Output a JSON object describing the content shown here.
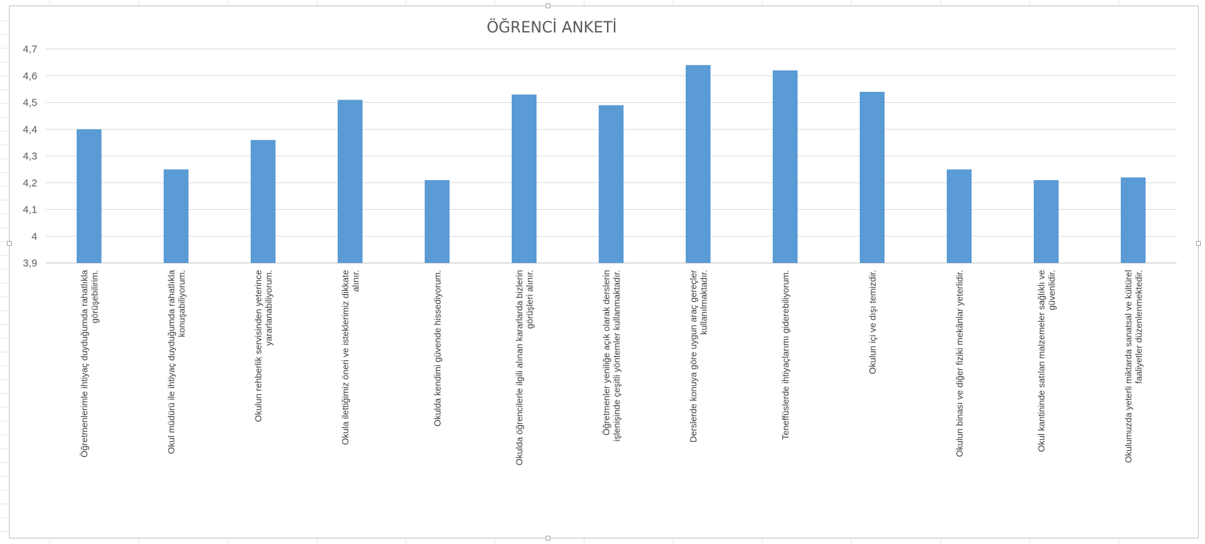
{
  "chart_data": {
    "type": "bar",
    "title": "ÖĞRENCİ ANKETİ",
    "xlabel": "",
    "ylabel": "",
    "ylim": [
      3.9,
      4.7
    ],
    "yticks": [
      "3,9",
      "4",
      "4,1",
      "4,2",
      "4,3",
      "4,4",
      "4,5",
      "4,6",
      "4,7"
    ],
    "grid": true,
    "legend": "none",
    "bar_color": "#5b9bd5",
    "categories": [
      [
        "Öğretmenlerimle ihtiyaç duyduğumda rahatlıkla",
        "görüşebilirim."
      ],
      [
        "Okul müdürü ile ihtiyaç duyduğumda rahatlıkla",
        "konuşabiliyorum."
      ],
      [
        "Okulun rehberlik servisinden yeterince",
        "yararlanabiliyorum."
      ],
      [
        "Okula ilettiğimiz öneri ve isteklerimiz dikkate",
        "alınır."
      ],
      [
        "Okulda kendimi güvende hissediyorum."
      ],
      [
        "Okulda öğrencilerle ilgili alınan kararlarda bizlerin",
        "görüşleri alınır."
      ],
      [
        "Öğretmenler yeniliğe açık olarak derslerin",
        "işlenişinde çeşitli yöntemler kullanmaktadır."
      ],
      [
        "Derslerde konuya göre uygun araç gereçler",
        "kullanılmaktadır."
      ],
      [
        "Teneffüslerde ihtiyaçlarımı giderebiliyorum."
      ],
      [
        "Okulun içi ve dışı temizdir."
      ],
      [
        "Okulun binası ve diğer fiziki mekânlar yeterlidir."
      ],
      [
        "Okul kantininde satılan malzemeler sağlıklı ve",
        "güvenlidir."
      ],
      [
        "Okulumuzda yeterli miktarda sanatsal ve kültürel",
        "faaliyetler düzenlenmektedir."
      ]
    ],
    "values": [
      4.4,
      4.25,
      4.36,
      4.51,
      4.21,
      4.53,
      4.49,
      4.64,
      4.62,
      4.54,
      4.25,
      4.21,
      4.22
    ]
  }
}
